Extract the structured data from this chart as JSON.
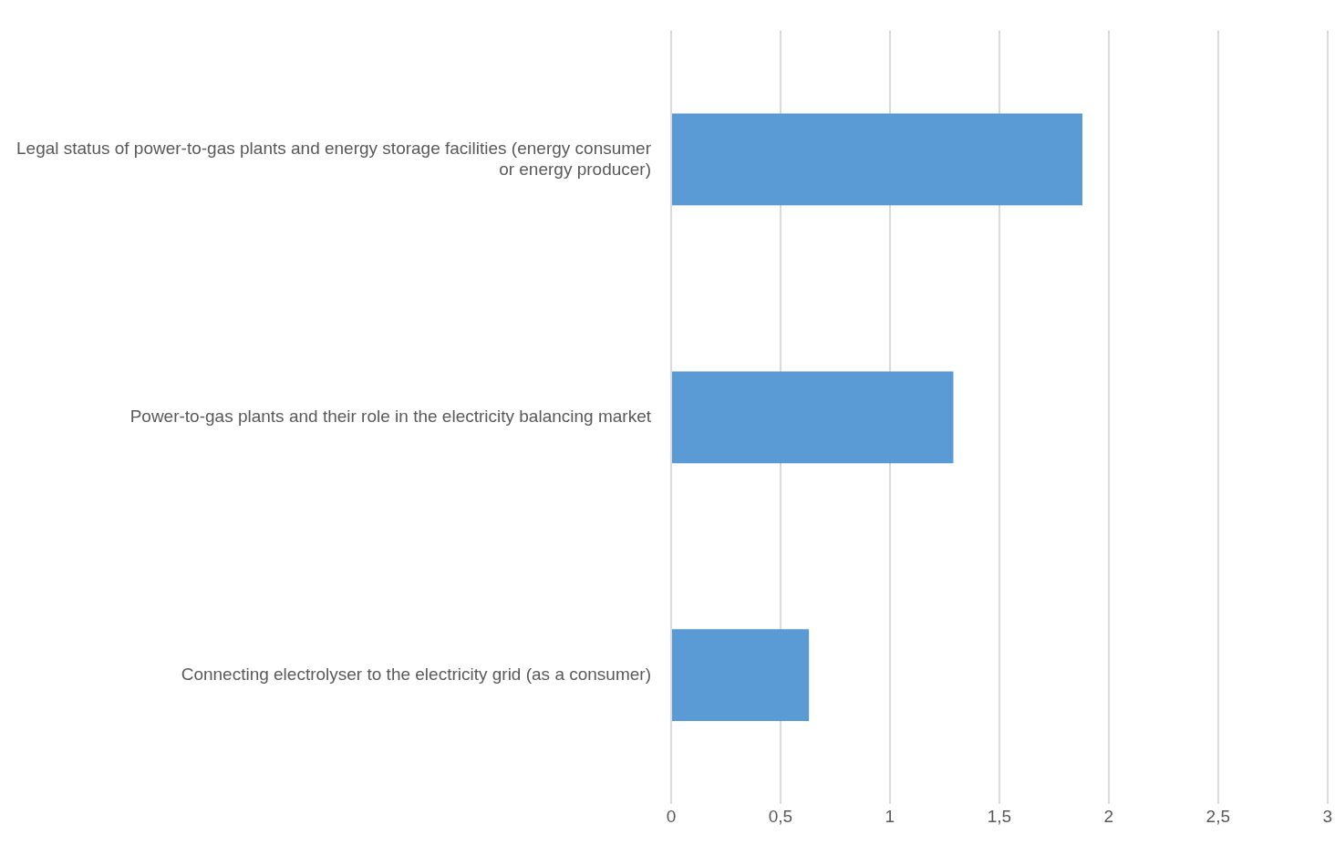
{
  "chart_data": {
    "type": "bar",
    "orientation": "horizontal",
    "categories": [
      "Legal status of power-to-gas plants and energy storage facilities (energy consumer or energy producer)",
      "Power-to-gas plants and their role in the electricity balancing market",
      "Connecting electrolyser to the electricity grid (as a consumer)"
    ],
    "values": [
      1.88,
      1.29,
      0.63
    ],
    "color": "#5b9bd5",
    "xlim": [
      0,
      3
    ],
    "xticks": [
      0,
      {
        "value": 0.5,
        "label": "0,5"
      },
      1,
      {
        "value": 1.5,
        "label": "1,5"
      },
      2,
      {
        "value": 2.5,
        "label": "2,5"
      },
      3
    ],
    "grid": "x",
    "legend": false
  }
}
